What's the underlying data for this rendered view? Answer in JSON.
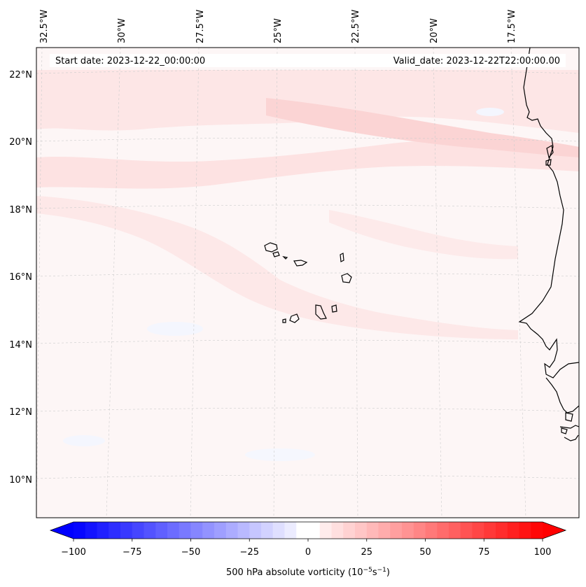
{
  "map": {
    "title_start": "Start date: 2023-12-22_00:00:00",
    "title_valid": "Valid_date: 2023-12-22T22:00:00.00",
    "lon_labels": [
      "32.5°W",
      "30°W",
      "27.5°W",
      "25°W",
      "22.5°W",
      "20°W",
      "17.5°W"
    ],
    "lat_labels": [
      "22°N",
      "20°N",
      "18°N",
      "16°N",
      "14°N",
      "12°N",
      "10°N"
    ],
    "field": "500 hPa absolute vorticity",
    "islands": "Cape Verde Islands",
    "coast": "West African coastline"
  },
  "colorbar": {
    "min": -100,
    "max": 100,
    "ticks": [
      "−100",
      "−75",
      "−50",
      "−25",
      "0",
      "25",
      "50",
      "75",
      "100"
    ],
    "label_main": "500 hPa absolute vorticity (10",
    "label_exp1": "−5",
    "label_mid": "s",
    "label_exp2": "−1",
    "label_end": ")",
    "color_low": "#0000ff",
    "color_mid": "#ffffff",
    "color_high": "#ff0000"
  }
}
